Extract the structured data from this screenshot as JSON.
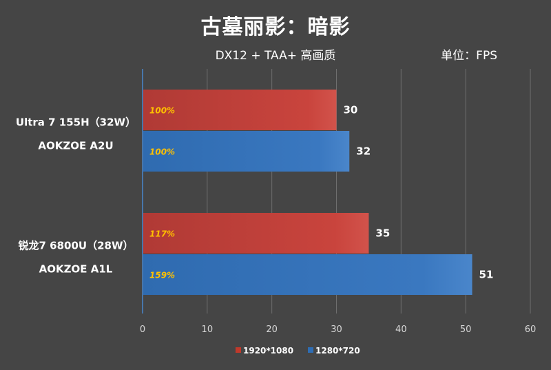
{
  "chart_data": {
    "type": "bar",
    "orientation": "horizontal",
    "title": "古墓丽影：暗影",
    "subtitle": "DX12 + TAA+ 高画质",
    "unit": "单位：FPS",
    "categories": [
      [
        "Ultra 7 155H（32W）",
        "AOKZOE A2U"
      ],
      [
        "锐龙7 6800U（28W）",
        "AOKZOE A1L"
      ]
    ],
    "series": [
      {
        "name": "1920*1080",
        "color": "#c0392b",
        "values": [
          30,
          35
        ],
        "pct_labels": [
          "100%",
          "117%"
        ]
      },
      {
        "name": "1280*720",
        "color": "#2e6db4",
        "values": [
          32,
          51
        ],
        "pct_labels": [
          "100%",
          "159%"
        ]
      }
    ],
    "xlim": [
      0,
      60
    ],
    "xticks": [
      0,
      10,
      20,
      30,
      40,
      50,
      60
    ],
    "grid": true,
    "legend_position": "bottom"
  }
}
